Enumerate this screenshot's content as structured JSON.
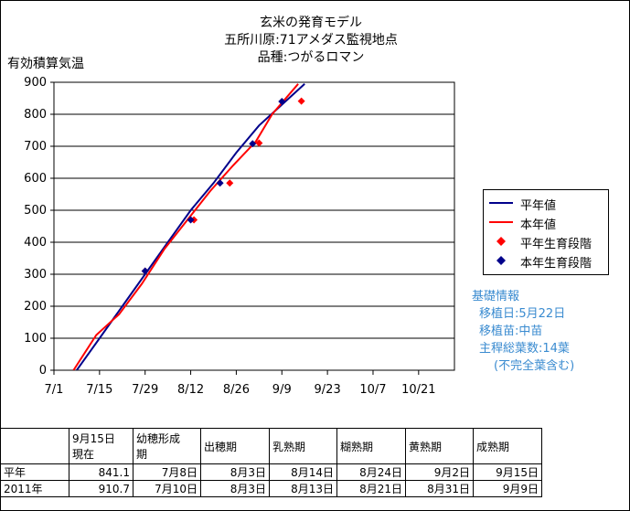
{
  "title": {
    "line1": "玄米の発育モデル",
    "line2": "五所川原:71アメダス監視地点",
    "line3": "品種:つがるロマン"
  },
  "ylabel": "有効積算気温",
  "legend": {
    "heinen": "平年値",
    "honnen": "本年値",
    "heinen_stage": "平年生育段階",
    "honnen_stage": "本年生育段階"
  },
  "colors": {
    "heinen": "#00008b",
    "honnen": "#ff0000",
    "info": "#3a8bd0"
  },
  "info": {
    "heading": "基礎情報",
    "planting_date": "移植日:5月22日",
    "seedling": "移植苗:中苗",
    "leaves": "主稈総葉数:14葉",
    "leaves_note": "(不完全葉含む)"
  },
  "chart_data": {
    "type": "line",
    "x_type": "date",
    "xlim": [
      "07-01",
      "11-01"
    ],
    "ylim": [
      0,
      900
    ],
    "x_ticks": [
      "07-01",
      "07-15",
      "07-29",
      "08-12",
      "08-26",
      "09-09",
      "09-23",
      "10-07",
      "10-21"
    ],
    "x_tick_labels": [
      "7/1",
      "7/15",
      "7/29",
      "8/12",
      "8/26",
      "9/9",
      "9/23",
      "10/7",
      "10/21"
    ],
    "y_ticks": [
      0,
      100,
      200,
      300,
      400,
      500,
      600,
      700,
      800,
      900
    ],
    "grid": "horizontal",
    "legend_position": "right",
    "series": [
      {
        "name": "平年値",
        "kind": "line",
        "color": "#00008b",
        "points": [
          [
            "07-08",
            0
          ],
          [
            "07-15",
            100
          ],
          [
            "07-22",
            200
          ],
          [
            "07-29",
            300
          ],
          [
            "08-05",
            400
          ],
          [
            "08-12",
            500
          ],
          [
            "08-19",
            585
          ],
          [
            "08-26",
            680
          ],
          [
            "09-02",
            765
          ],
          [
            "09-09",
            830
          ],
          [
            "09-16",
            895
          ]
        ]
      },
      {
        "name": "本年値",
        "kind": "line",
        "color": "#ff0000",
        "points": [
          [
            "07-07",
            0
          ],
          [
            "07-14",
            110
          ],
          [
            "07-21",
            175
          ],
          [
            "07-28",
            270
          ],
          [
            "08-04",
            380
          ],
          [
            "08-11",
            470
          ],
          [
            "08-18",
            560
          ],
          [
            "08-25",
            640
          ],
          [
            "09-01",
            715
          ],
          [
            "09-06",
            800
          ],
          [
            "09-14",
            895
          ]
        ]
      },
      {
        "name": "平年生育段階",
        "kind": "points",
        "color": "#ff0000",
        "points": [
          [
            "07-29",
            310
          ],
          [
            "08-13",
            470
          ],
          [
            "08-24",
            585
          ],
          [
            "09-02",
            710
          ],
          [
            "09-15",
            841
          ]
        ]
      },
      {
        "name": "本年生育段階",
        "kind": "points",
        "color": "#00008b",
        "points": [
          [
            "07-29",
            310
          ],
          [
            "08-12",
            470
          ],
          [
            "08-21",
            585
          ],
          [
            "08-31",
            708
          ],
          [
            "09-09",
            840
          ]
        ]
      }
    ]
  },
  "table": {
    "headers": [
      "",
      "9月15日\n現在",
      "幼穂形成\n期",
      "出穂期",
      "乳熟期",
      "糊熟期",
      "黄熟期",
      "成熟期"
    ],
    "rows": [
      [
        "平年",
        "841.1",
        "7月8日",
        "8月3日",
        "8月14日",
        "8月24日",
        "9月2日",
        "9月15日"
      ],
      [
        "2011年",
        "910.7",
        "7月10日",
        "8月3日",
        "8月13日",
        "8月21日",
        "8月31日",
        "9月9日"
      ]
    ]
  }
}
